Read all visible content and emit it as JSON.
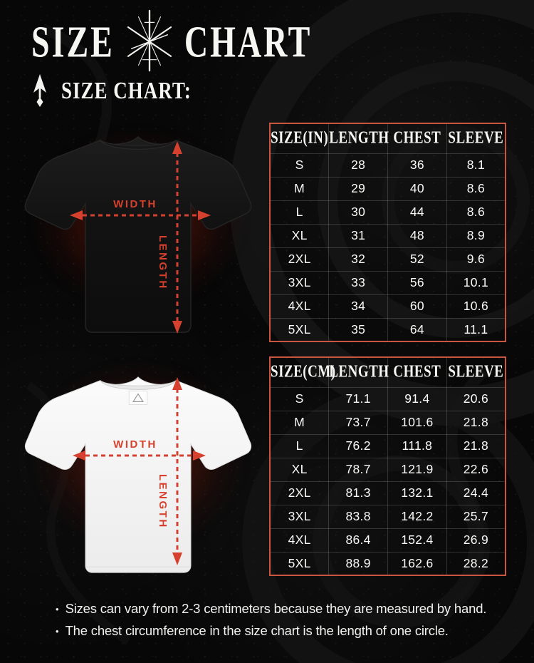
{
  "header": {
    "title_left": "SIZE",
    "title_right": "CHART",
    "sigil_icon": "black-metal-sigil-star",
    "spear_icon": "spear-arrowhead-up",
    "subtitle": "SIZE CHART:"
  },
  "colors": {
    "accent_red": "#d5412e",
    "table_border_red": "#c9573f",
    "background": "#070707",
    "text_white": "#f5f5f2"
  },
  "shirt_diagrams": [
    {
      "shirt": "black-tshirt-front",
      "width_label": "WIDTH",
      "length_label": "LENGTH"
    },
    {
      "shirt": "white-tshirt-front",
      "width_label": "WIDTH",
      "length_label": "LENGTH"
    }
  ],
  "tables": [
    {
      "headers": [
        "SIZE(IN)",
        "LENGTH",
        "CHEST",
        "SLEEVE"
      ],
      "rows": [
        [
          "S",
          "28",
          "36",
          "8.1"
        ],
        [
          "M",
          "29",
          "40",
          "8.6"
        ],
        [
          "L",
          "30",
          "44",
          "8.6"
        ],
        [
          "XL",
          "31",
          "48",
          "8.9"
        ],
        [
          "2XL",
          "32",
          "52",
          "9.6"
        ],
        [
          "3XL",
          "33",
          "56",
          "10.1"
        ],
        [
          "4XL",
          "34",
          "60",
          "10.6"
        ],
        [
          "5XL",
          "35",
          "64",
          "11.1"
        ]
      ]
    },
    {
      "headers": [
        "SIZE(CM)",
        "LENGTH",
        "CHEST",
        "SLEEVE"
      ],
      "rows": [
        [
          "S",
          "71.1",
          "91.4",
          "20.6"
        ],
        [
          "M",
          "73.7",
          "101.6",
          "21.8"
        ],
        [
          "L",
          "76.2",
          "111.8",
          "21.8"
        ],
        [
          "XL",
          "78.7",
          "121.9",
          "22.6"
        ],
        [
          "2XL",
          "81.3",
          "132.1",
          "24.4"
        ],
        [
          "3XL",
          "83.8",
          "142.2",
          "25.7"
        ],
        [
          "4XL",
          "86.4",
          "152.4",
          "26.9"
        ],
        [
          "5XL",
          "88.9",
          "162.6",
          "28.2"
        ]
      ]
    }
  ],
  "footer": {
    "bullet": "•",
    "notes": [
      "Sizes can vary from 2-3 centimeters because they are measured by hand.",
      "The chest circumference in the size chart is the length of one circle."
    ]
  }
}
